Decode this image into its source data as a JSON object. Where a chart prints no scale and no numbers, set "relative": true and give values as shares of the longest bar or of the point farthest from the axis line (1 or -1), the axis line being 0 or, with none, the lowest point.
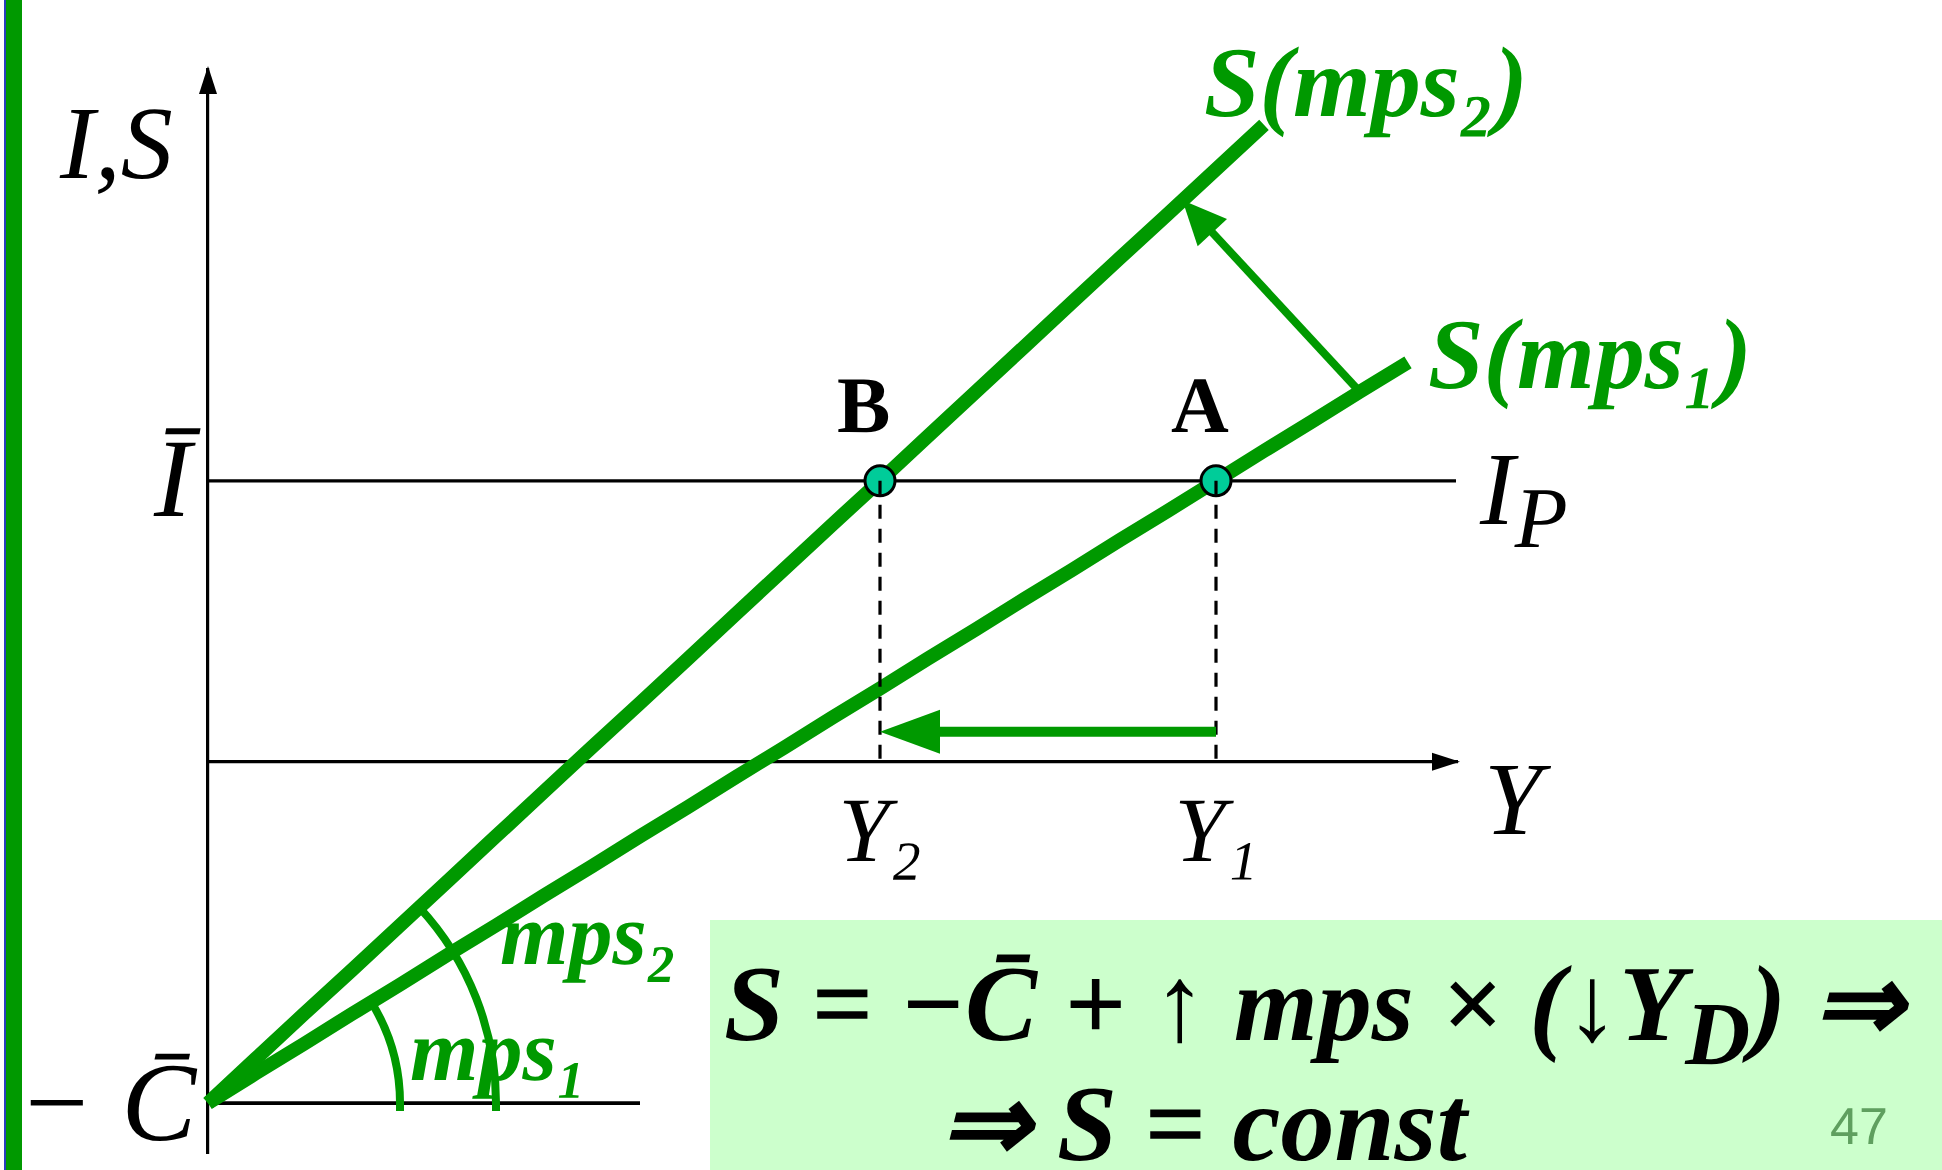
{
  "chart_data": {
    "type": "line",
    "relative": true,
    "xlabel": "Y",
    "ylabel": "I,S",
    "categories": [
      null,
      null,
      null,
      null,
      null,
      null,
      null,
      null,
      null,
      null,
      null,
      null,
      null,
      null,
      "Y₂",
      null,
      null,
      null,
      null,
      null,
      null,
      "Y₁",
      null,
      null,
      null,
      null,
      null
    ],
    "series": [
      {
        "name": "S(mps₂)",
        "color": "#009900",
        "values": [
          -0.536,
          -0.466,
          -0.396,
          -0.327,
          -0.257,
          -0.187,
          -0.117,
          -0.047,
          0.023,
          0.092,
          0.162,
          0.232,
          0.302,
          0.372,
          0.441,
          0.511,
          0.581,
          0.651,
          0.721,
          0.791,
          0.86,
          0.93,
          1,
          null,
          null,
          null,
          null
        ]
      },
      {
        "name": "S(mps₁)",
        "color": "#009900",
        "values": [
          -0.536,
          -0.489,
          -0.443,
          -0.396,
          -0.35,
          -0.303,
          -0.257,
          -0.21,
          -0.164,
          -0.117,
          -0.071,
          -0.024,
          0.022,
          0.069,
          0.115,
          0.162,
          0.208,
          0.255,
          0.301,
          0.348,
          0.394,
          0.441,
          0.488,
          0.534,
          0.581,
          0.627,
          null
        ]
      },
      {
        "color": "#000000",
        "values": [
          -0.536,
          -0.536,
          -0.536,
          -0.536,
          -0.536,
          -0.536,
          -0.536,
          -0.536,
          -0.536,
          -0.536,
          null,
          null,
          null,
          null,
          null,
          null,
          null,
          null,
          null,
          null,
          null,
          null,
          null,
          null,
          null,
          null,
          null
        ]
      },
      {
        "type": "scatter",
        "color": "#00cc99",
        "marker": "circle",
        "values": [
          null,
          null,
          null,
          null,
          null,
          null,
          null,
          null,
          null,
          null,
          null,
          null,
          null,
          null,
          0.441,
          null,
          null,
          null,
          null,
          null,
          null,
          0.441,
          null,
          null,
          null,
          null,
          null
        ]
      }
    ],
    "ref_lines": [
      {
        "axis": "y",
        "value": 0.441,
        "label": "I$_{P}$",
        "color": "#000000"
      }
    ],
    "annotations": [
      "Ī",
      "− C̄",
      {
        "text": "B",
        "x": "Y₂",
        "y": 0.441
      },
      {
        "text": "A",
        "x": "Y₁",
        "y": 0.441
      },
      "mps₂",
      "mps₁",
      "S = −C̄ + ↑ mps × (↓Y$_{D}$) ⇒",
      "⇒ S = const",
      "47"
    ]
  }
}
